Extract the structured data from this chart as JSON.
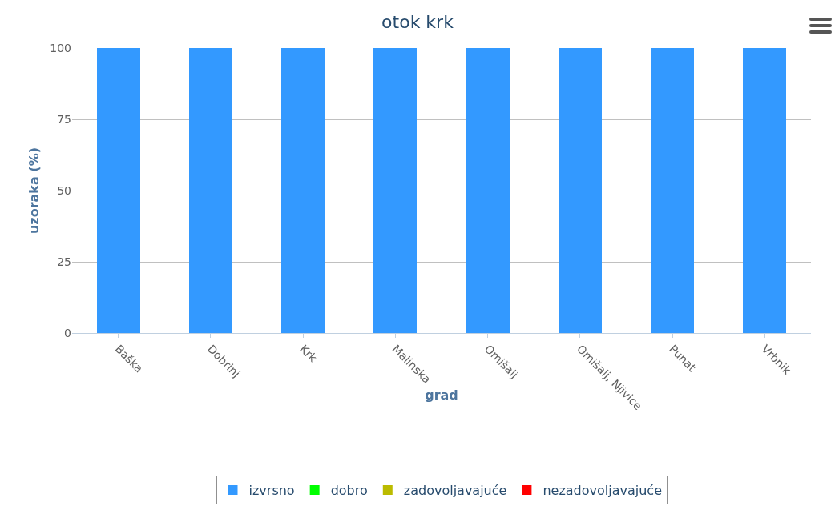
{
  "chart_data": {
    "type": "bar",
    "title": "otok krk",
    "xlabel": "grad",
    "ylabel": "uzoraka (%)",
    "categories": [
      "Baška",
      "Dobrinj",
      "Krk",
      "Malinska",
      "Omišalj",
      "Omišalj, Njivice",
      "Punat",
      "Vrbnik"
    ],
    "stacked": true,
    "series": [
      {
        "name": "izvrsno",
        "color": "#3399ff",
        "values": [
          100,
          100,
          100,
          100,
          100,
          100,
          100,
          100
        ]
      },
      {
        "name": "dobro",
        "color": "#00ff00",
        "values": [
          0,
          0,
          0,
          0,
          0,
          0,
          0,
          0
        ]
      },
      {
        "name": "zadovoljavajuće",
        "color": "#bbbb00",
        "values": [
          0,
          0,
          0,
          0,
          0,
          0,
          0,
          0
        ]
      },
      {
        "name": "nezadovoljavajuće",
        "color": "#ff0000",
        "values": [
          0,
          0,
          0,
          0,
          0,
          0,
          0,
          0
        ]
      }
    ],
    "ylim": [
      0,
      100
    ],
    "yticks": [
      0,
      25,
      50,
      75,
      100
    ],
    "grid": "y",
    "legend": "bottom"
  }
}
